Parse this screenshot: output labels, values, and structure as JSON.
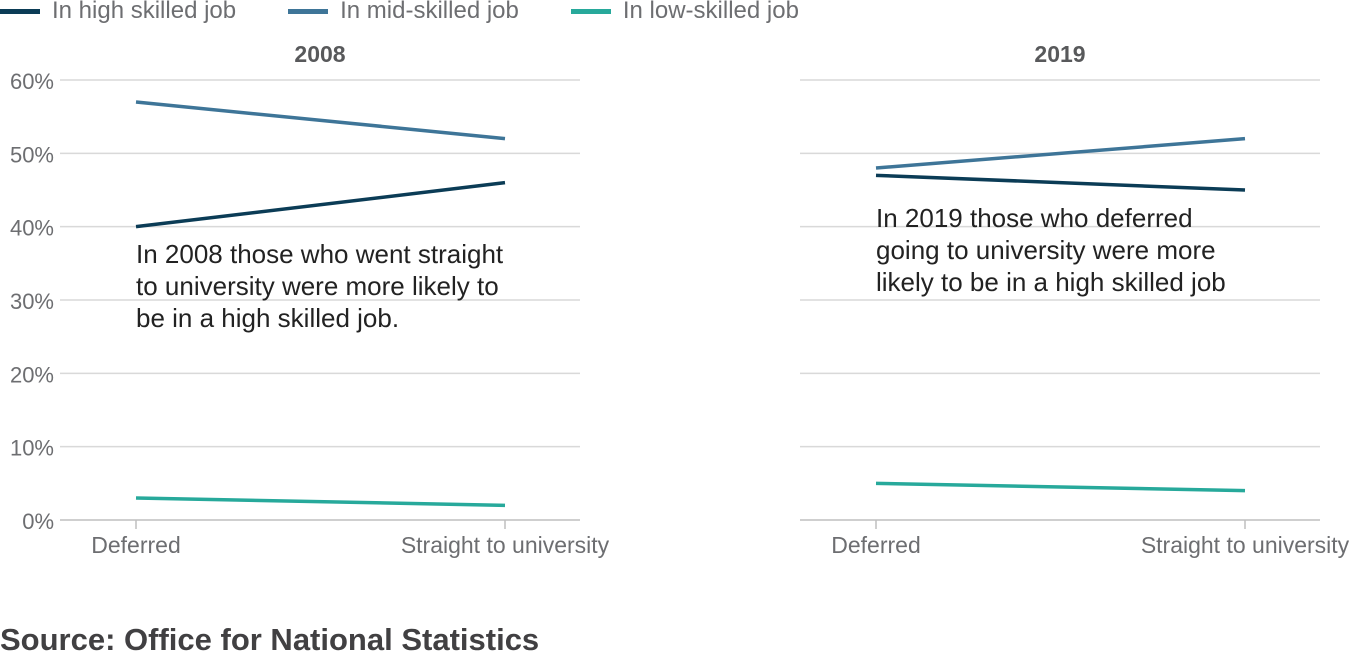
{
  "legend": [
    {
      "label": "In high skilled job",
      "color": "#0b3c56"
    },
    {
      "label": "In mid-skilled job",
      "color": "#3e7598"
    },
    {
      "label": "In low-skilled job",
      "color": "#27a99b"
    }
  ],
  "annotations": {
    "2008": "In 2008 those who went straight to university were more likely to be in a high skilled job.",
    "2019": "In 2019 those who deferred going to university were more likely to be in a high skilled job"
  },
  "source": "Source: Office for National Statistics",
  "chart_data": [
    {
      "type": "line",
      "title": "2008",
      "categories": [
        "Deferred",
        "Straight to university"
      ],
      "series": [
        {
          "name": "In high skilled job",
          "values": [
            40,
            46
          ]
        },
        {
          "name": "In mid-skilled job",
          "values": [
            57,
            52
          ]
        },
        {
          "name": "In low-skilled job",
          "values": [
            3,
            2
          ]
        }
      ],
      "ylim": [
        0,
        60
      ],
      "yticks": [
        "0%",
        "10%",
        "20%",
        "30%",
        "40%",
        "50%",
        "60%"
      ],
      "grid": true,
      "legend": "top-left"
    },
    {
      "type": "line",
      "title": "2019",
      "categories": [
        "Deferred",
        "Straight to university"
      ],
      "series": [
        {
          "name": "In high skilled job",
          "values": [
            47,
            45
          ]
        },
        {
          "name": "In mid-skilled job",
          "values": [
            48,
            52
          ]
        },
        {
          "name": "In low-skilled job",
          "values": [
            5,
            4
          ]
        }
      ],
      "ylim": [
        0,
        60
      ],
      "grid": true,
      "legend": "top-left"
    }
  ]
}
